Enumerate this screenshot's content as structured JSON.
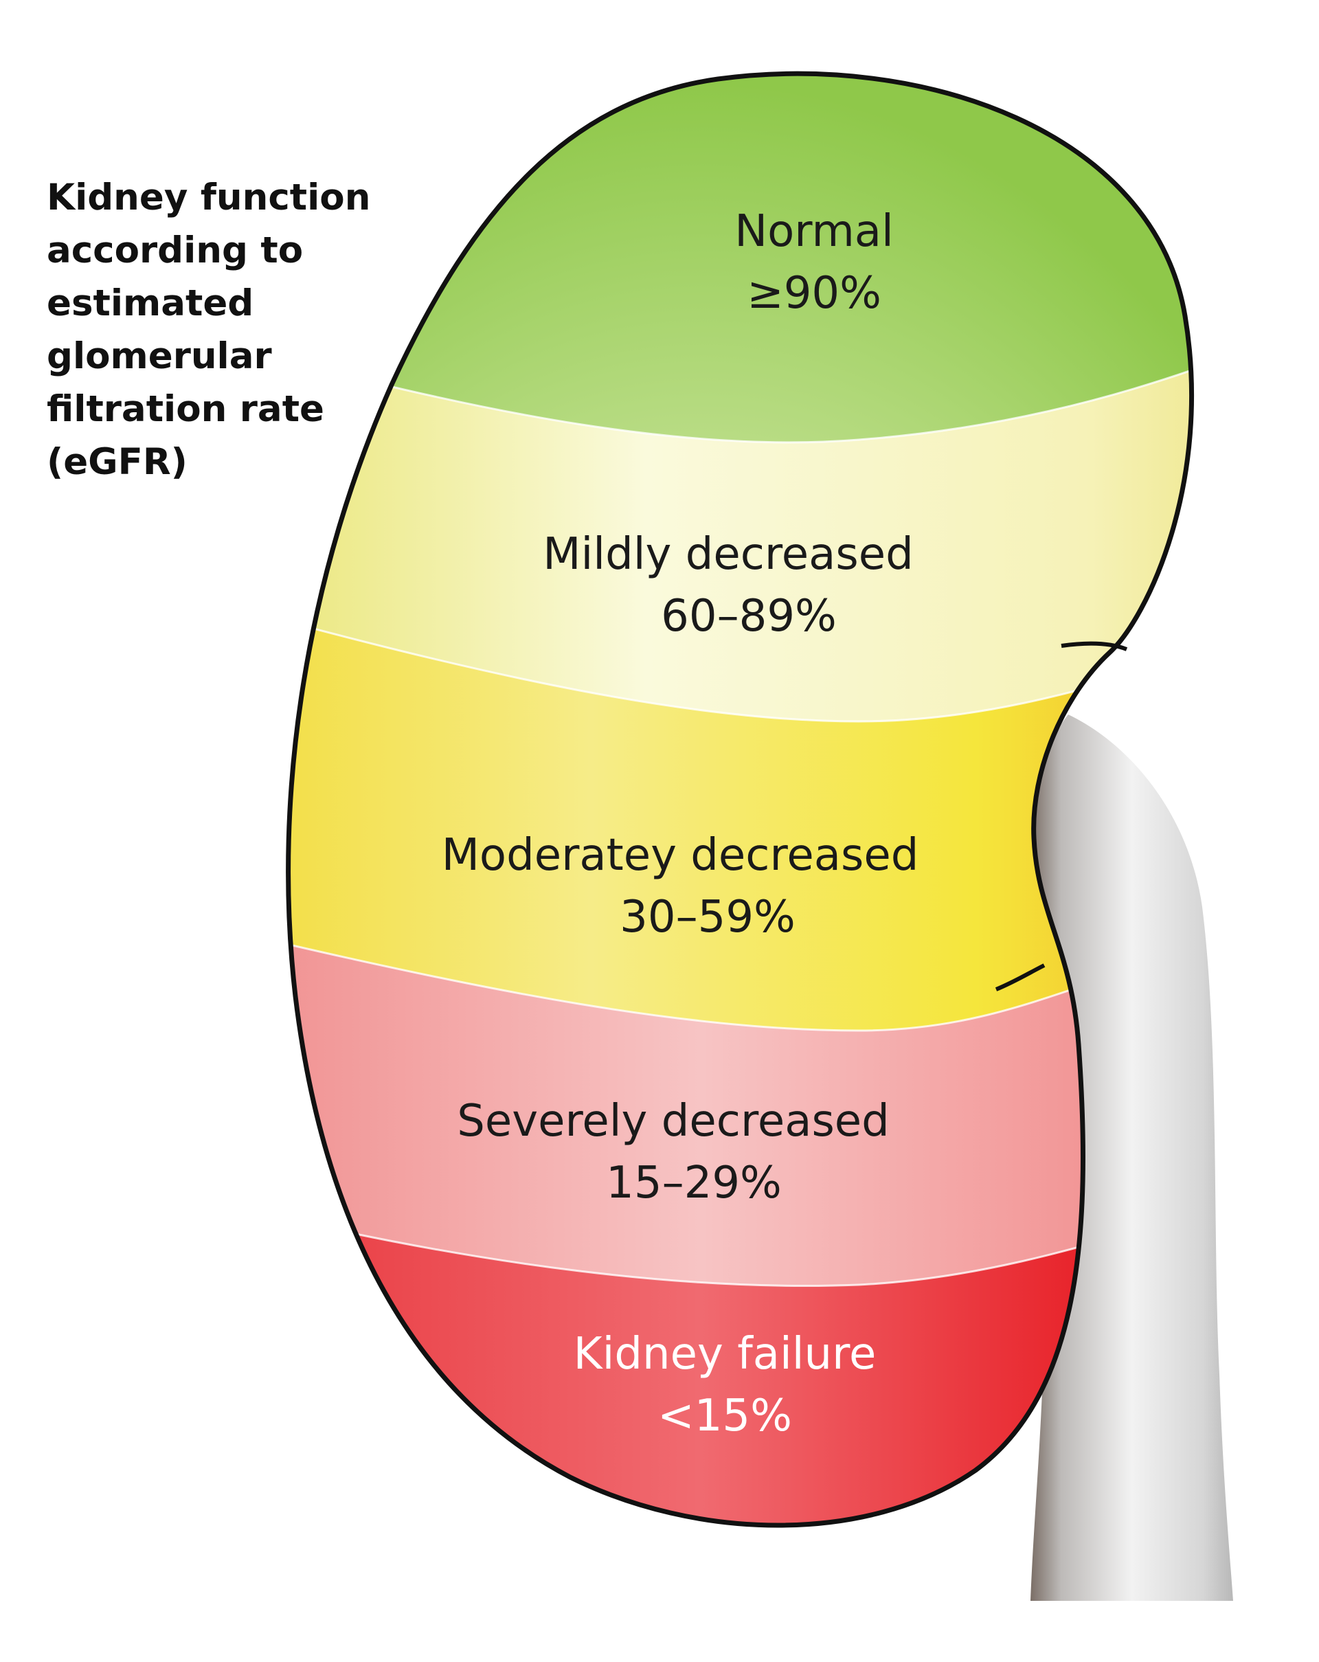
{
  "title_lines": [
    "Kidney function",
    "according to",
    "estimated",
    "glomerular",
    "filtration rate",
    "(eGFR)"
  ],
  "zones": [
    {
      "label": "Normal",
      "range": "≥90%",
      "color": "#8fc84a",
      "text_color": "#1a1a1a"
    },
    {
      "label": "Mildly decreased",
      "range": "60–89%",
      "color": "#f4f0a0",
      "text_color": "#1a1a1a"
    },
    {
      "label": "Moderatey decreased",
      "range": "30–59%",
      "color": "#f2dc3a",
      "text_color": "#1a1a1a"
    },
    {
      "label": "Severely decreased",
      "range": "15–29%",
      "color": "#f2a0a0",
      "text_color": "#1a1a1a"
    },
    {
      "label": "Kidney failure",
      "range": "<15%",
      "color": "#e8232a",
      "text_color": "#ffffff"
    }
  ],
  "colors": {
    "outline": "#111111",
    "ureter": "#d9d9d9"
  }
}
